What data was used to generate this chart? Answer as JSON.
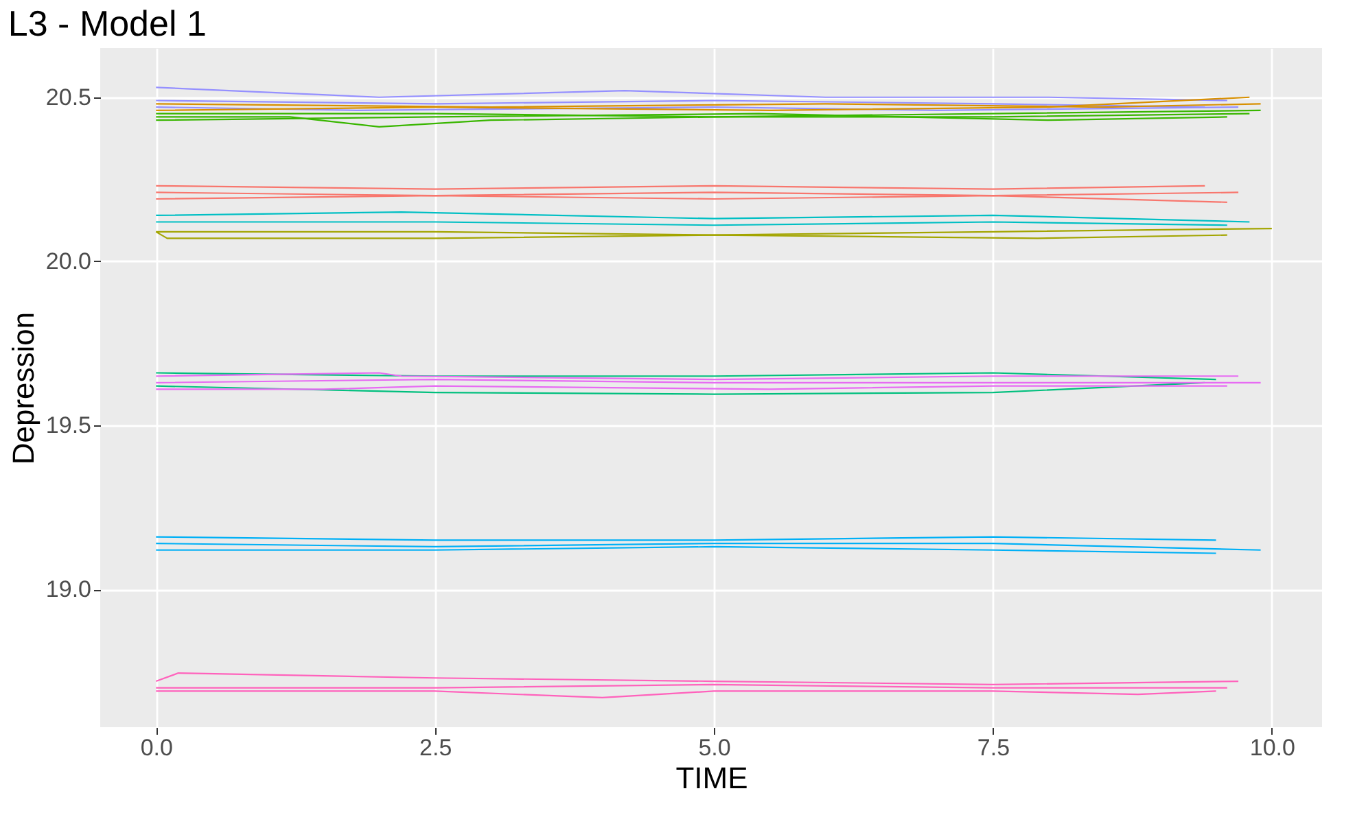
{
  "chart_data": {
    "type": "line",
    "title": "L3 - Model 1",
    "xlabel": "TIME",
    "ylabel": "Depression",
    "xlim": [
      -0.5,
      10.45
    ],
    "ylim": [
      18.58,
      20.65
    ],
    "xticks": [
      {
        "value": 0,
        "label": "0.0"
      },
      2.5,
      {
        "value": 5,
        "label": "5.0"
      },
      7.5,
      {
        "value": 10,
        "label": "10.0"
      }
    ],
    "yticks": [
      {
        "value": 19,
        "label": "19.0"
      },
      19.5,
      {
        "value": 20,
        "label": "20.0"
      },
      20.5
    ],
    "grid": true,
    "legend": false,
    "line_style": "solid",
    "marker": "none",
    "series": [
      {
        "color": "#9590ff",
        "x": [
          0,
          2,
          4.2,
          6,
          8,
          9.6
        ],
        "values": [
          20.53,
          20.5,
          20.52,
          20.5,
          20.5,
          20.49
        ]
      },
      {
        "color": "#9590ff",
        "x": [
          0,
          2.5,
          5,
          7.5,
          9.4
        ],
        "values": [
          20.49,
          20.48,
          20.49,
          20.48,
          20.47
        ]
      },
      {
        "color": "#9590ff",
        "x": [
          0,
          1.8,
          5,
          7,
          9.7
        ],
        "values": [
          20.47,
          20.46,
          20.47,
          20.46,
          20.47
        ]
      },
      {
        "color": "#d89000",
        "x": [
          0,
          3,
          6,
          8.5,
          9.9
        ],
        "values": [
          20.48,
          20.47,
          20.48,
          20.47,
          20.48
        ]
      },
      {
        "color": "#d89000",
        "x": [
          0,
          2.5,
          5.5,
          8,
          9.8
        ],
        "values": [
          20.46,
          20.47,
          20.46,
          20.47,
          20.5
        ]
      },
      {
        "color": "#39b600",
        "x": [
          0,
          1.2,
          2,
          3,
          5,
          7.5,
          9.8
        ],
        "values": [
          20.44,
          20.44,
          20.41,
          20.43,
          20.44,
          20.44,
          20.45
        ]
      },
      {
        "color": "#39b600",
        "x": [
          0,
          2.5,
          5,
          7.5,
          9.9
        ],
        "values": [
          20.45,
          20.45,
          20.44,
          20.45,
          20.46
        ]
      },
      {
        "color": "#39b600",
        "x": [
          0,
          2.5,
          5.4,
          8,
          9.6
        ],
        "values": [
          20.43,
          20.44,
          20.45,
          20.43,
          20.44
        ]
      },
      {
        "color": "#f8766d",
        "x": [
          0,
          2.5,
          5,
          7.5,
          9.4
        ],
        "values": [
          20.23,
          20.22,
          20.23,
          20.22,
          20.23
        ]
      },
      {
        "color": "#f8766d",
        "x": [
          0,
          2.5,
          5,
          7.5,
          9.7
        ],
        "values": [
          20.21,
          20.2,
          20.21,
          20.2,
          20.21
        ]
      },
      {
        "color": "#f8766d",
        "x": [
          0,
          2.5,
          5,
          7.5,
          9.6
        ],
        "values": [
          20.19,
          20.2,
          20.19,
          20.2,
          20.18
        ]
      },
      {
        "color": "#00bfc4",
        "x": [
          0,
          2.2,
          5,
          7.5,
          9.8
        ],
        "values": [
          20.14,
          20.15,
          20.13,
          20.14,
          20.12
        ]
      },
      {
        "color": "#00bfc4",
        "x": [
          0,
          2.5,
          5,
          7.5,
          9.6
        ],
        "values": [
          20.12,
          20.12,
          20.11,
          20.12,
          20.11
        ]
      },
      {
        "color": "#a3a500",
        "x": [
          0,
          2.5,
          5,
          7.5,
          10
        ],
        "values": [
          20.09,
          20.09,
          20.08,
          20.09,
          20.1
        ]
      },
      {
        "color": "#a3a500",
        "x": [
          0,
          0.1,
          2.5,
          5,
          7.9,
          9.6
        ],
        "values": [
          20.09,
          20.07,
          20.07,
          20.08,
          20.07,
          20.08
        ]
      },
      {
        "color": "#00bf7d",
        "x": [
          0,
          2.5,
          5,
          7.5,
          9.5
        ],
        "values": [
          19.66,
          19.65,
          19.65,
          19.66,
          19.64
        ]
      },
      {
        "color": "#00bf7d",
        "x": [
          0,
          2.5,
          5,
          7.5,
          9.4
        ],
        "values": [
          19.62,
          19.6,
          19.595,
          19.6,
          19.63
        ]
      },
      {
        "color": "#e76bf3",
        "x": [
          0,
          2,
          2.2,
          5,
          7.5,
          9.7
        ],
        "values": [
          19.65,
          19.66,
          19.65,
          19.64,
          19.65,
          19.65
        ]
      },
      {
        "color": "#e76bf3",
        "x": [
          0,
          2.5,
          5,
          7.5,
          9.9
        ],
        "values": [
          19.63,
          19.64,
          19.63,
          19.63,
          19.63
        ]
      },
      {
        "color": "#e76bf3",
        "x": [
          0,
          1.5,
          2.5,
          5.5,
          7.5,
          9.6
        ],
        "values": [
          19.61,
          19.61,
          19.62,
          19.61,
          19.62,
          19.62
        ]
      },
      {
        "color": "#00b0f6",
        "x": [
          0,
          2.5,
          5,
          7.5,
          9.5
        ],
        "values": [
          19.16,
          19.15,
          19.15,
          19.16,
          19.15
        ]
      },
      {
        "color": "#00b0f6",
        "x": [
          0,
          2.5,
          5,
          7.5,
          9.9
        ],
        "values": [
          19.14,
          19.13,
          19.14,
          19.14,
          19.12
        ]
      },
      {
        "color": "#00b0f6",
        "x": [
          0,
          2.5,
          5,
          7.5,
          9.5
        ],
        "values": [
          19.12,
          19.12,
          19.13,
          19.12,
          19.11
        ]
      },
      {
        "color": "#ff62bc",
        "x": [
          0,
          0.2,
          2.5,
          5,
          7.5,
          9.7
        ],
        "values": [
          18.72,
          18.745,
          18.73,
          18.72,
          18.71,
          18.72
        ]
      },
      {
        "color": "#ff62bc",
        "x": [
          0,
          2.5,
          5,
          7.5,
          9.6
        ],
        "values": [
          18.7,
          18.7,
          18.71,
          18.7,
          18.7
        ]
      },
      {
        "color": "#ff62bc",
        "x": [
          0,
          2.5,
          4,
          5,
          7.5,
          8.8,
          9.5
        ],
        "values": [
          18.69,
          18.69,
          18.67,
          18.69,
          18.69,
          18.68,
          18.69
        ]
      }
    ]
  }
}
